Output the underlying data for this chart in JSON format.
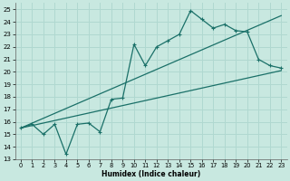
{
  "xlabel": "Humidex (Indice chaleur)",
  "ylabel": "",
  "bg_color": "#c8e8e0",
  "grid_color": "#b0d8d0",
  "line_color": "#1a7068",
  "x_main": [
    0,
    1,
    2,
    3,
    4,
    5,
    6,
    7,
    8,
    9,
    10,
    11,
    12,
    13,
    14,
    15,
    16,
    17,
    18,
    19,
    20,
    21,
    22,
    23
  ],
  "y_main": [
    15.5,
    15.8,
    15.0,
    15.8,
    13.4,
    15.8,
    15.9,
    15.2,
    17.8,
    17.9,
    22.2,
    20.5,
    22.0,
    22.5,
    23.0,
    24.9,
    24.2,
    23.5,
    23.8,
    23.3,
    23.2,
    21.0,
    20.5,
    20.3
  ],
  "ylim": [
    13,
    25.5
  ],
  "xlim": [
    -0.5,
    23.5
  ],
  "yticks": [
    13,
    14,
    15,
    16,
    17,
    18,
    19,
    20,
    21,
    22,
    23,
    24,
    25
  ],
  "xticks": [
    0,
    1,
    2,
    3,
    4,
    5,
    6,
    7,
    8,
    9,
    10,
    11,
    12,
    13,
    14,
    15,
    16,
    17,
    18,
    19,
    20,
    21,
    22,
    23
  ]
}
